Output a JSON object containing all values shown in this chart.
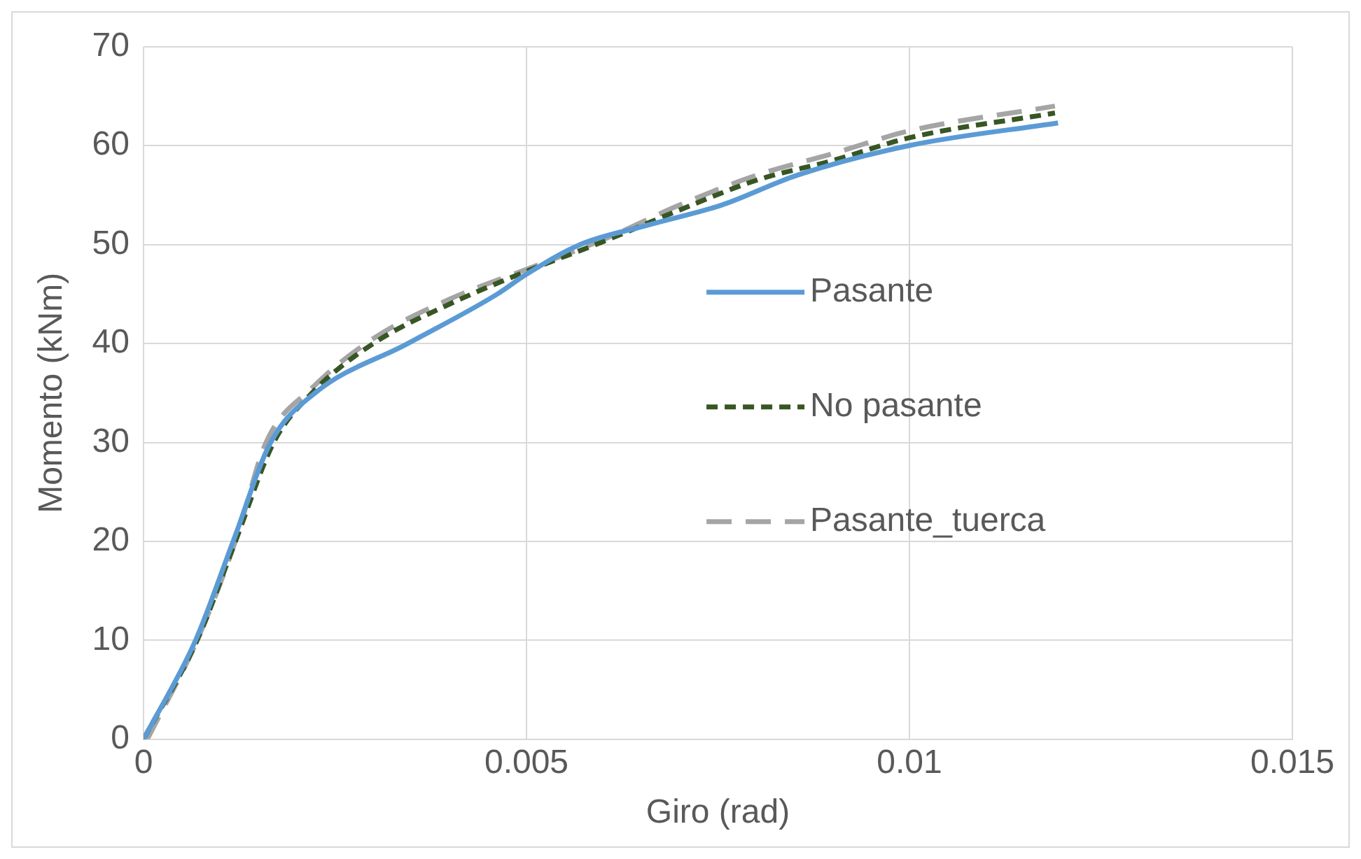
{
  "chart_data": {
    "type": "line",
    "xlabel": "Giro (rad)",
    "ylabel": "Momento (kNm)",
    "xlim": [
      0,
      0.015
    ],
    "xticks": [
      0,
      0.005,
      0.01,
      0.015
    ],
    "ylim": [
      0,
      70
    ],
    "yticks": [
      0,
      10,
      20,
      30,
      40,
      50,
      60,
      70
    ],
    "grid": true,
    "legend": "right",
    "marker": "none",
    "series": [
      {
        "name": "Pasante",
        "color": "#5b9bd5",
        "line_style": "solid",
        "x": [
          0,
          0.00068,
          0.00117,
          0.00166,
          0.00224,
          0.00345,
          0.00462,
          0.005,
          0.0057,
          0.0066,
          0.00755,
          0.00853,
          0.00999,
          0.01194
        ],
        "values": [
          0,
          10,
          20,
          30,
          35,
          40,
          45,
          47,
          50,
          52,
          54,
          57,
          60,
          62.3
        ]
      },
      {
        "name": "No pasante",
        "color": "#375623",
        "line_style": "dashed",
        "x": [
          0,
          0.0007,
          0.0012,
          0.0017,
          0.0022,
          0.003,
          0.004,
          0.005,
          0.006,
          0.007,
          0.008,
          0.009,
          0.01,
          0.0119
        ],
        "values": [
          0,
          10,
          20,
          30,
          35,
          40,
          44,
          47.3,
          50.3,
          53.5,
          56.5,
          58.5,
          60.8,
          63.3
        ]
      },
      {
        "name": "Pasante_tuerca",
        "color": "#a5a5a5",
        "line_style": "dashed",
        "x": [
          5e-05,
          0.0007,
          0.0012,
          0.0016,
          0.0022,
          0.003,
          0.004,
          0.005,
          0.006,
          0.007,
          0.008,
          0.009,
          0.01,
          0.0119
        ],
        "values": [
          0,
          10,
          20,
          30,
          35.5,
          40.5,
          44.5,
          47.5,
          50.5,
          54,
          57,
          59.2,
          61.5,
          64
        ]
      }
    ]
  }
}
